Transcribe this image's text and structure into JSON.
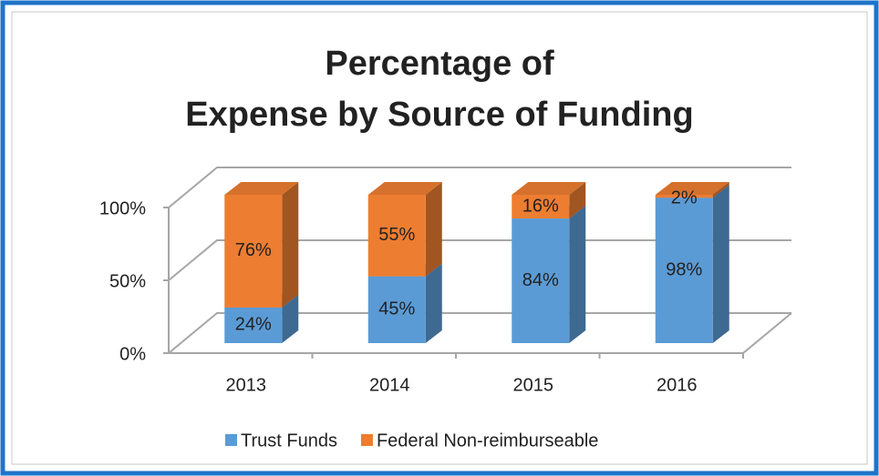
{
  "chart_data": {
    "type": "bar3d_stacked",
    "title": [
      "Percentage of",
      "Expense by Source of Funding"
    ],
    "categories": [
      "2013",
      "2014",
      "2015",
      "2016"
    ],
    "series": [
      {
        "name": "Trust Funds",
        "color": "#5b9bd5",
        "values": [
          24,
          45,
          84,
          98
        ],
        "value_labels": [
          "24%",
          "45%",
          "84%",
          "98%"
        ]
      },
      {
        "name": "Federal Non-reimburseable",
        "color": "#ed7d31",
        "values": [
          76,
          55,
          16,
          2
        ],
        "value_labels": [
          "76%",
          "55%",
          "16%",
          "2%"
        ]
      }
    ],
    "ylim": [
      0,
      100
    ],
    "yticks": [
      {
        "value": 0,
        "label": "0%"
      },
      {
        "value": 50,
        "label": "50%"
      },
      {
        "value": 100,
        "label": "100%"
      }
    ],
    "grid": true,
    "legend": "bottom"
  }
}
